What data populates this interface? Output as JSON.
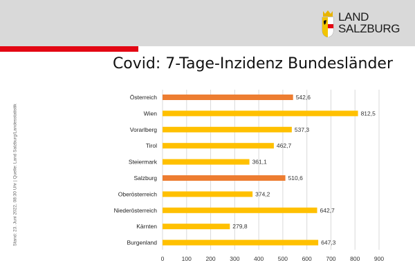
{
  "header": {
    "logo": {
      "line1": "LAND",
      "line2": "SALZBURG"
    },
    "colors": {
      "band": "#d9d9d9",
      "accent": "#e30613"
    }
  },
  "side_note": "Stand: 23. Juni 2022, 08:30 Uhr | Quelle: Land Salzburg/Landesstatistik",
  "chart_data": {
    "type": "bar",
    "orientation": "horizontal",
    "title": "Covid: 7-Tage-Inzidenz Bundesländer",
    "categories": [
      "Österreich",
      "Wien",
      "Vorarlberg",
      "Tirol",
      "Steiermark",
      "Salzburg",
      "Oberösterreich",
      "Niederösterreich",
      "Kärnten",
      "Burgenland"
    ],
    "values": [
      542.6,
      812.5,
      537.3,
      462.7,
      361.1,
      510.6,
      374.2,
      642.7,
      279.8,
      647.3
    ],
    "value_labels": [
      "542,6",
      "812,5",
      "537,3",
      "462,7",
      "361,1",
      "510,6",
      "374,2",
      "642,7",
      "279,8",
      "647,3"
    ],
    "highlight": [
      "Österreich",
      "Salzburg"
    ],
    "colors": {
      "default": "#ffc000",
      "highlight": "#ed7d31"
    },
    "xlim": [
      0,
      900
    ],
    "xticks": [
      0,
      100,
      200,
      300,
      400,
      500,
      600,
      700,
      800,
      900
    ],
    "grid": true,
    "legend": "none"
  }
}
